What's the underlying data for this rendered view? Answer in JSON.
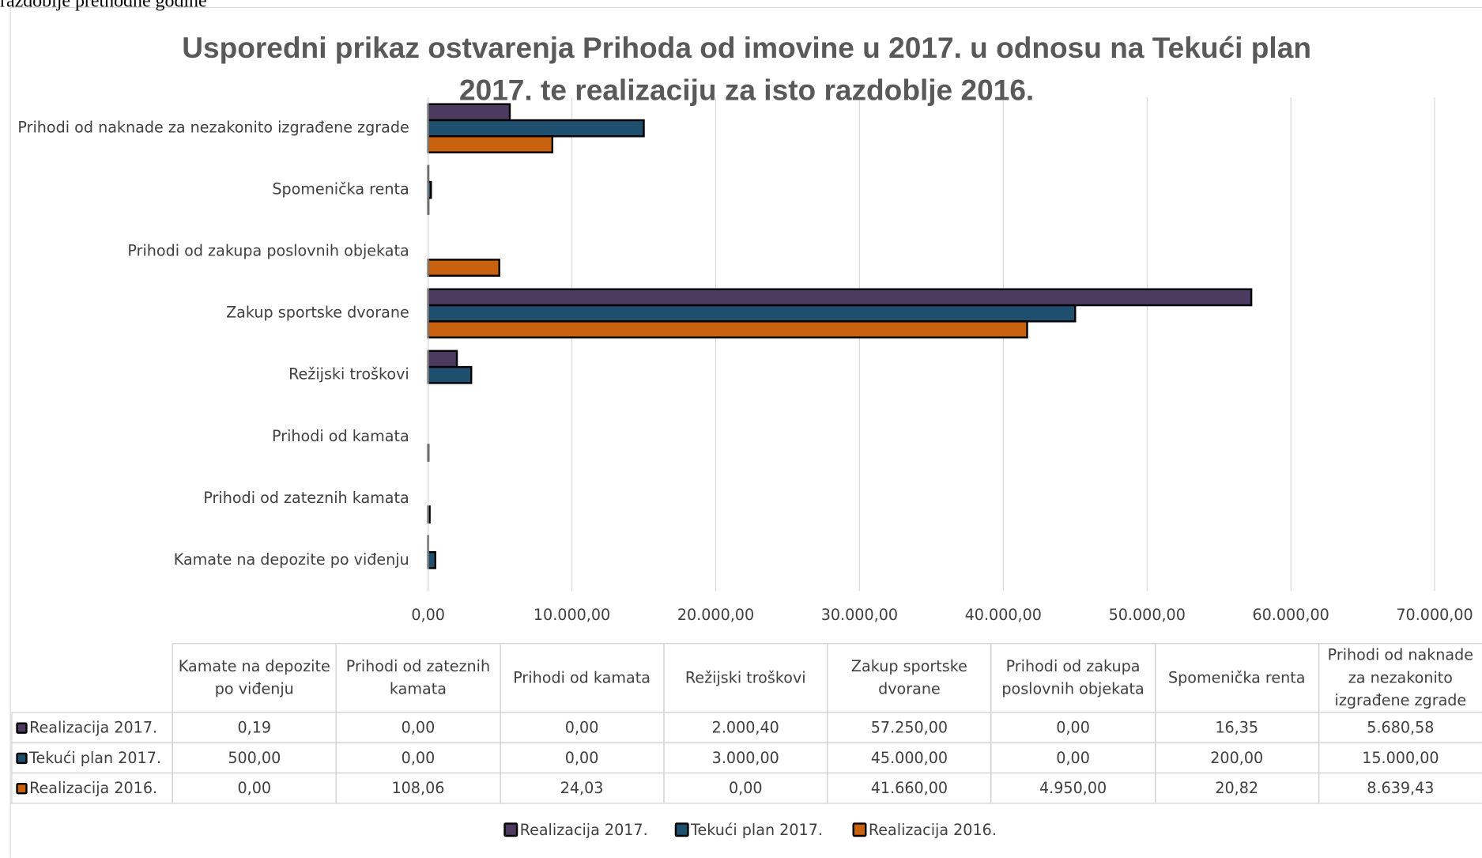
{
  "top_text": "razdoblje prethodne godine",
  "chart_data": {
    "type": "bar",
    "orientation": "horizontal",
    "title": "Usporedni prikaz ostvarenja Prihoda od imovine u 2017. u odnosu na Tekući plan 2017. te realizaciju za isto razdoblje 2016.",
    "categories": [
      "Kamate na depozite po viđenju",
      "Prihodi od zateznih kamata",
      "Prihodi od kamata",
      "Režijski troškovi",
      "Zakup sportske dvorane",
      "Prihodi od zakupa poslovnih objekata",
      "Spomenička renta",
      "Prihodi od naknade za nezakonito izgrađene zgrade"
    ],
    "series": [
      {
        "name": "Realizacija 2017.",
        "color": "#4d3b5f",
        "values": [
          0.19,
          0,
          0,
          2000.4,
          57250,
          0,
          16.35,
          5680.58
        ],
        "value_labels": [
          "0,19",
          "0,00",
          "0,00",
          "2.000,40",
          "57.250,00",
          "0,00",
          "16,35",
          "5.680,58"
        ]
      },
      {
        "name": "Tekući plan 2017.",
        "color": "#1f4f6e",
        "values": [
          500,
          0,
          0,
          3000,
          45000,
          0,
          200,
          15000
        ],
        "value_labels": [
          "500,00",
          "0,00",
          "0,00",
          "3.000,00",
          "45.000,00",
          "0,00",
          "200,00",
          "15.000,00"
        ]
      },
      {
        "name": "Realizacija 2016.",
        "color": "#c8620f",
        "values": [
          0,
          108.06,
          24.03,
          0,
          41660,
          4950,
          20.82,
          8639.43
        ],
        "value_labels": [
          "0,00",
          "108,06",
          "24,03",
          "0,00",
          "41.660,00",
          "4.950,00",
          "20,82",
          "8.639,43"
        ]
      }
    ],
    "xlim": [
      0,
      70000
    ],
    "xticks": [
      {
        "value": 0,
        "label": "0,00"
      },
      {
        "value": 10000,
        "label": "10.000,00"
      },
      {
        "value": 20000,
        "label": "20.000,00"
      },
      {
        "value": 30000,
        "label": "30.000,00"
      },
      {
        "value": 40000,
        "label": "40.000,00"
      },
      {
        "value": 50000,
        "label": "50.000,00"
      },
      {
        "value": 60000,
        "label": "60.000,00"
      },
      {
        "value": 70000,
        "label": "70.000,00"
      }
    ],
    "grid": true,
    "legend": "bottom",
    "data_table": true
  }
}
